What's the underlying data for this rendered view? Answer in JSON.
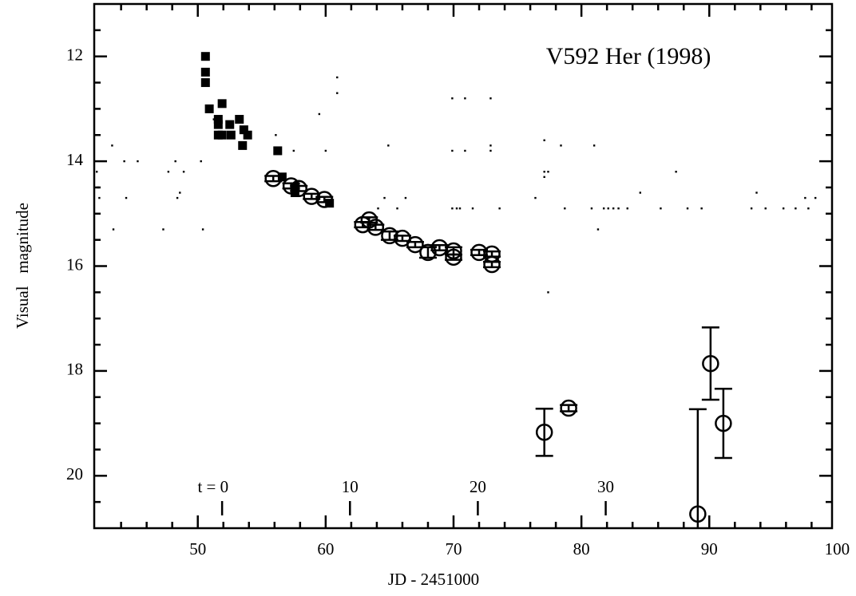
{
  "chart_data": {
    "type": "scatter",
    "title": "V592 Her (1998)",
    "x_label": "JD - 2451000",
    "y_label": "Visual   magnitude",
    "xlim": [
      41.9,
      99.6
    ],
    "ylim": [
      11,
      21
    ],
    "y_inverted": true,
    "xticks": [
      50,
      60,
      70,
      80,
      90,
      100
    ],
    "yticks": [
      12,
      14,
      16,
      18,
      20
    ],
    "xminorticks": [
      44,
      46,
      48,
      52,
      54,
      56,
      58,
      62,
      64,
      66,
      68,
      72,
      74,
      76,
      78,
      82,
      84,
      86,
      88,
      92,
      94,
      96,
      98
    ],
    "yminorticks": [
      11.5,
      12.5,
      13,
      13.5,
      14.5,
      15,
      15.5,
      16.5,
      17,
      17.5,
      18.5,
      19,
      19.5,
      20.5
    ],
    "tticks": [
      {
        "value": 51.9,
        "label": "t = 0"
      },
      {
        "value": 61.9,
        "label": "10"
      },
      {
        "value": 71.9,
        "label": "20"
      },
      {
        "value": 81.9,
        "label": "30"
      }
    ],
    "series": [
      {
        "marker": "square",
        "color": "#000000",
        "x": [
          50.6,
          50.6,
          50.6,
          50.9,
          51.6,
          51.6,
          51.6,
          51.9,
          51.9,
          52.5,
          52.6,
          53.25,
          53.5,
          53.6,
          53.9,
          56.25,
          56.6,
          57.6,
          57.6,
          60.3
        ],
        "y": [
          12.0,
          12.3,
          12.5,
          13.0,
          13.2,
          13.3,
          13.5,
          12.9,
          13.5,
          13.3,
          13.5,
          13.2,
          13.7,
          13.4,
          13.5,
          13.8,
          14.3,
          14.5,
          14.6,
          14.8
        ]
      },
      {
        "marker": "circle",
        "color": "#000000",
        "x": [
          55.9,
          57.3,
          57.9,
          58.9,
          59.9,
          62.9,
          63.4,
          63.9,
          65.0,
          66.0,
          67.0,
          68.0,
          68.9,
          70.0,
          70.0,
          72.0,
          73.0,
          73.0,
          77.1,
          79.0,
          89.1,
          90.1,
          91.1
        ],
        "y": [
          14.33,
          14.47,
          14.52,
          14.67,
          14.73,
          15.21,
          15.12,
          15.26,
          15.42,
          15.47,
          15.59,
          15.74,
          15.65,
          15.71,
          15.83,
          15.74,
          15.77,
          15.97,
          19.17,
          18.71,
          20.73,
          17.86,
          19.0
        ],
        "err": [
          0.05,
          0.05,
          0.05,
          0.05,
          0.05,
          0.05,
          0.05,
          0.05,
          0.08,
          0.05,
          0.05,
          0.1,
          0.05,
          0.07,
          0.05,
          0.05,
          0.05,
          0.05,
          0.45,
          0.06,
          2.0,
          0.69,
          0.66
        ]
      },
      {
        "marker": "dot",
        "color": "#000000",
        "x": [
          42.1,
          42.2,
          42.3,
          43.3,
          43.4,
          44.25,
          44.4,
          45.3,
          47.3,
          47.7,
          48.25,
          48.4,
          48.6,
          48.9,
          50.25,
          50.4,
          51.25,
          56.1,
          57.5,
          59.5,
          60.0,
          60.9,
          60.9,
          64.1,
          64.6,
          64.9,
          65.6,
          66.25,
          69.9,
          69.9,
          69.9,
          70.25,
          70.5,
          70.9,
          70.9,
          71.5,
          72.9,
          72.9,
          72.9,
          73.6,
          76.4,
          77.1,
          77.1,
          77.1,
          77.4,
          77.4,
          78.4,
          78.7,
          80.8,
          81.0,
          81.3,
          81.75,
          82.1,
          82.5,
          82.9,
          83.6,
          84.6,
          86.2,
          87.4,
          88.3,
          89.4,
          93.3,
          93.7,
          94.4,
          95.8,
          96.75,
          97.5,
          97.75,
          98.3
        ],
        "y": [
          14.2,
          14.5,
          14.7,
          13.7,
          15.3,
          14.0,
          14.7,
          14.0,
          15.3,
          14.2,
          14.0,
          14.7,
          14.6,
          14.2,
          14.0,
          15.3,
          13.2,
          13.5,
          13.8,
          13.1,
          13.8,
          12.4,
          12.7,
          14.9,
          14.7,
          13.7,
          14.9,
          14.7,
          12.8,
          13.8,
          14.9,
          14.9,
          14.9,
          12.8,
          13.8,
          14.9,
          12.8,
          13.7,
          13.8,
          14.9,
          14.7,
          13.6,
          14.2,
          14.3,
          14.2,
          16.5,
          13.7,
          14.9,
          14.9,
          13.7,
          15.3,
          14.9,
          14.9,
          14.9,
          14.9,
          14.9,
          14.6,
          14.9,
          14.2,
          14.9,
          14.9,
          14.9,
          14.6,
          14.9,
          14.9,
          14.9,
          14.7,
          14.9,
          14.7
        ]
      }
    ]
  }
}
